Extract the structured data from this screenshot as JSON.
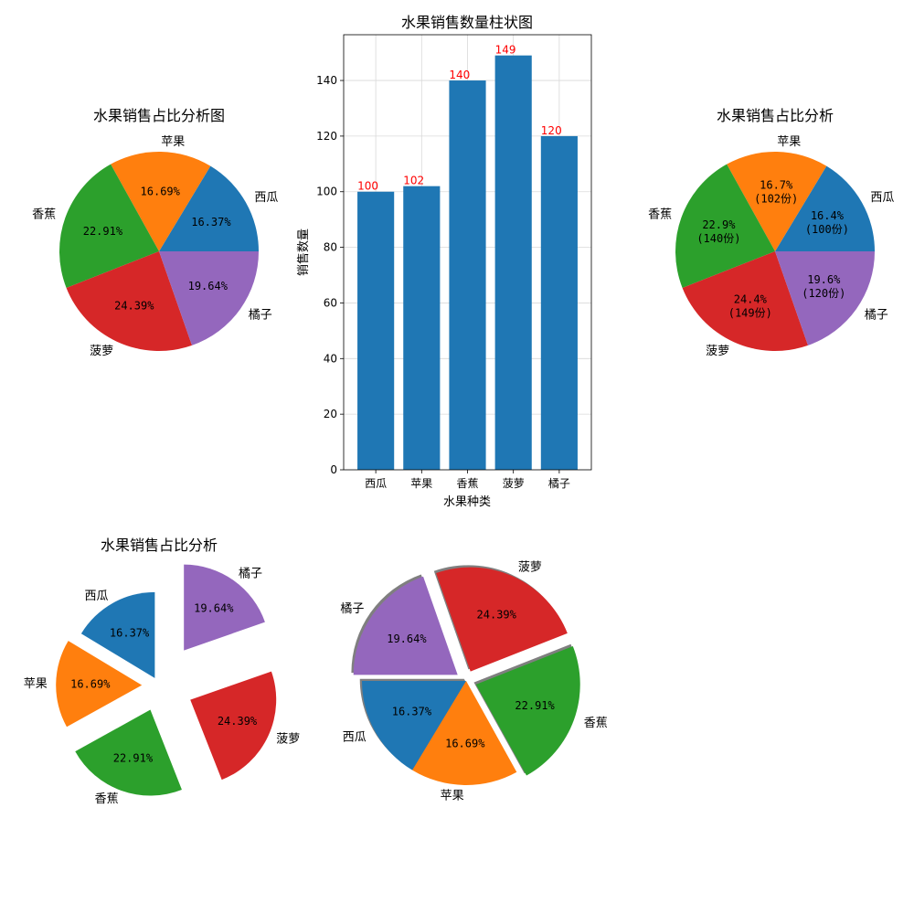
{
  "chart_data": [
    {
      "id": "pie1",
      "type": "pie",
      "title": "水果销售占比分析图",
      "categories": [
        "西瓜",
        "苹果",
        "香蕉",
        "菠萝",
        "橘子"
      ],
      "values": [
        100,
        102,
        140,
        149,
        120
      ],
      "pct_labels": [
        "16.37%",
        "16.69%",
        "22.91%",
        "24.39%",
        "19.64%"
      ],
      "colors": [
        "#1f77b4",
        "#ff7f0e",
        "#2ca02c",
        "#d62728",
        "#9467bd"
      ]
    },
    {
      "id": "bar",
      "type": "bar",
      "title": "水果销售数量柱状图",
      "categories": [
        "西瓜",
        "苹果",
        "香蕉",
        "菠萝",
        "橘子"
      ],
      "values": [
        100,
        102,
        140,
        149,
        120
      ],
      "xlabel": "水果种类",
      "ylabel": "销售数量",
      "ylim": [
        0,
        156.45
      ],
      "yticks": [
        0,
        20,
        40,
        60,
        80,
        100,
        120,
        140
      ],
      "grid": true,
      "bar_color": "#1f77b4",
      "data_label_color": "#ff0000"
    },
    {
      "id": "pie2",
      "type": "pie",
      "title": "水果销售占比分析",
      "categories": [
        "西瓜",
        "苹果",
        "香蕉",
        "菠萝",
        "橘子"
      ],
      "values": [
        100,
        102,
        140,
        149,
        120
      ],
      "pct_labels": [
        "16.4%",
        "16.7%",
        "22.9%",
        "24.4%",
        "19.6%"
      ],
      "count_labels": [
        "(100份)",
        "(102份)",
        "(140份)",
        "(149份)",
        "(120份)"
      ],
      "colors": [
        "#1f77b4",
        "#ff7f0e",
        "#2ca02c",
        "#d62728",
        "#9467bd"
      ]
    },
    {
      "id": "pie3",
      "type": "pie",
      "title": "水果销售占比分析",
      "categories": [
        "西瓜",
        "苹果",
        "香蕉",
        "菠萝",
        "橘子"
      ],
      "values": [
        100,
        102,
        140,
        149,
        120
      ],
      "pct_labels": [
        "16.37%",
        "16.69%",
        "22.91%",
        "24.39%",
        "19.64%"
      ],
      "explode": [
        0.1,
        0.2,
        0.3,
        0.4,
        0.5
      ],
      "start_angle": 90,
      "colors": [
        "#1f77b4",
        "#ff7f0e",
        "#2ca02c",
        "#d62728",
        "#9467bd"
      ]
    },
    {
      "id": "pie4",
      "type": "pie",
      "title": "",
      "categories": [
        "西瓜",
        "苹果",
        "香蕉",
        "菠萝",
        "橘子"
      ],
      "values": [
        100,
        102,
        140,
        149,
        120
      ],
      "pct_labels": [
        "16.37%",
        "16.69%",
        "22.91%",
        "24.39%",
        "19.64%"
      ],
      "explode": [
        0,
        0,
        0.1,
        0.1,
        0.1
      ],
      "start_angle": 180,
      "shadow": true,
      "colors": [
        "#1f77b4",
        "#ff7f0e",
        "#2ca02c",
        "#d62728",
        "#9467bd"
      ]
    }
  ]
}
